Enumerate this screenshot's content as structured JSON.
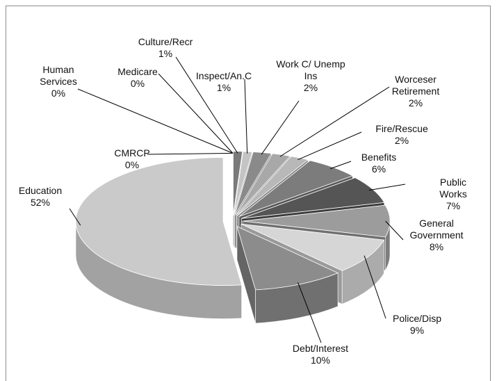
{
  "chart_data": {
    "type": "pie3d",
    "categories": [
      "CMRCP",
      "Human Services",
      "Medicare",
      "Culture/Recr",
      "Inspect/An.C",
      "Work C/ Unemp Ins",
      "Worceser Retirement",
      "Fire/Rescue",
      "Benefits",
      "Public Works",
      "General Government",
      "Police/Disp",
      "Debt/Interest",
      "Education"
    ],
    "values": [
      0,
      0,
      0,
      1,
      1,
      2,
      2,
      2,
      6,
      7,
      8,
      9,
      10,
      52
    ],
    "value_labels": [
      "0%",
      "0%",
      "0%",
      "1%",
      "1%",
      "2%",
      "2%",
      "2%",
      "6%",
      "7%",
      "8%",
      "9%",
      "10%",
      "52%"
    ],
    "colors": [
      "#9a9a9a",
      "#6e6e6e",
      "#b0b0b0",
      "#7a7a7a",
      "#c4c4c4",
      "#8a8a8a",
      "#a8a8a8",
      "#b8b8b8",
      "#7c7c7c",
      "#555555",
      "#9c9c9c",
      "#d6d6d6",
      "#8c8c8c",
      "#cacaca"
    ]
  }
}
